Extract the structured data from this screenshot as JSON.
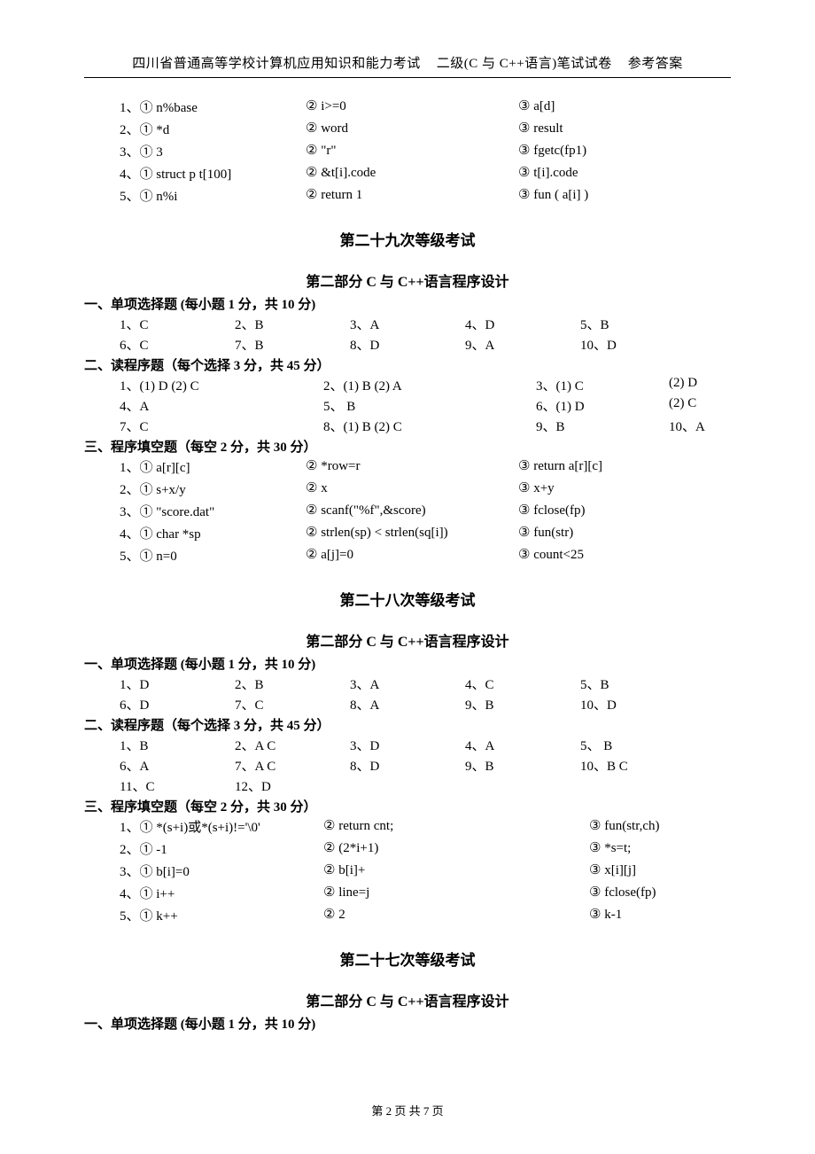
{
  "header": {
    "left": "四川省普通高等学校计算机应用知识和能力考试",
    "mid": "二级(C 与 C++语言)笔试试卷",
    "right": "参考答案"
  },
  "topFill": [
    {
      "c1": "1、① n%base",
      "c2": "② i>=0",
      "c3": "③ a[d]"
    },
    {
      "c1": "2、① *d",
      "c2": "② word",
      "c3": "③ result"
    },
    {
      "c1": "3、① 3",
      "c2": "② \"r\"",
      "c3": "③ fgetc(fp1)"
    },
    {
      "c1": "4、① struct   p   t[100]",
      "c2": "② &t[i].code",
      "c3": "③ t[i].code"
    },
    {
      "c1": "5、① n%i",
      "c2": "② return   1",
      "c3": "③ fun ( a[i] )"
    }
  ],
  "exam29": {
    "title": "第二十九次等级考试",
    "part": "第二部分 C 与 C++语言程序设计",
    "sec1": {
      "title": "一、单项选择题 (每小题 1 分，共 10 分)",
      "rows": [
        [
          "1、C",
          "2、B",
          "3、A",
          "4、D",
          "5、B"
        ],
        [
          "6、C",
          "7、B",
          "8、D",
          "9、A",
          "10、D"
        ]
      ]
    },
    "sec2": {
      "title": "二、读程序题（每个选择 3 分，共 45 分）",
      "rows": [
        {
          "rc1": "1、(1) D    (2) C",
          "rc2": "2、(1) B    (2) A",
          "rc3": "3、(1) C",
          "rc4": "(2) D"
        },
        {
          "rc1": "4、A",
          "rc2": "5、 B",
          "rc3": "6、(1) D",
          "rc4": "(2) C"
        },
        {
          "rc1": "7、C",
          "rc2": "8、(1) B    (2) C",
          "rc3": "9、B",
          "rc4": "10、A"
        }
      ]
    },
    "sec3": {
      "title": "三、程序填空题（每空 2 分，共 30 分）",
      "rows": [
        {
          "c1": "1、① a[r][c]",
          "c2": "② *row=r",
          "c3": "③ return   a[r][c]"
        },
        {
          "c1": "2、① s+x/y",
          "c2": "② x",
          "c3": "③ x+y"
        },
        {
          "c1": "3、① \"score.dat\"",
          "c2": "② scanf(\"%f\",&score)",
          "c3": "③ fclose(fp)"
        },
        {
          "c1": "4、① char *sp",
          "c2": "② strlen(sp) < strlen(sq[i])",
          "c3": "③ fun(str)"
        },
        {
          "c1": "5、① n=0",
          "c2": "② a[j]=0",
          "c3": "③ count<25"
        }
      ]
    }
  },
  "exam28": {
    "title": "第二十八次等级考试",
    "part": "第二部分 C 与 C++语言程序设计",
    "sec1": {
      "title": "一、单项选择题 (每小题 1 分，共 10 分)",
      "rows": [
        [
          "1、D",
          "2、B",
          "3、A",
          "4、C",
          "5、B"
        ],
        [
          "6、D",
          "7、C",
          "8、A",
          "9、B",
          "10、D"
        ]
      ]
    },
    "sec2": {
      "title": "二、读程序题（每个选择 3 分，共 45 分）",
      "rows": [
        [
          "1、B",
          "2、A  C",
          "3、D",
          "4、A",
          "5、  B"
        ],
        [
          "6、A",
          "7、A  C",
          "8、D",
          "9、B",
          "10、B  C"
        ],
        [
          "11、C",
          "12、D",
          "",
          "",
          ""
        ]
      ]
    },
    "sec3": {
      "title": "三、程序填空题（每空 2 分，共 30 分）",
      "rows": [
        {
          "c1": "1、① *(s+i)或*(s+i)!='\\0'",
          "c2": "② return cnt;",
          "c3": "③ fun(str,ch)"
        },
        {
          "c1": "2、① -1",
          "c2": "② (2*i+1)",
          "c3": "③ *s=t;"
        },
        {
          "c1": "3、① b[i]=0",
          "c2": "② b[i]+",
          "c3": "③ x[i][j]"
        },
        {
          "c1": "4、① i++",
          "c2": "② line=j",
          "c3": "③ fclose(fp)"
        },
        {
          "c1": "5、① k++",
          "c2": "② 2",
          "c3": "③ k-1"
        }
      ]
    }
  },
  "exam27": {
    "title": "第二十七次等级考试",
    "part": "第二部分 C 与 C++语言程序设计",
    "sec1": {
      "title": "一、单项选择题 (每小题 1 分，共 10 分)"
    }
  },
  "footer": "第 2 页 共 7 页"
}
